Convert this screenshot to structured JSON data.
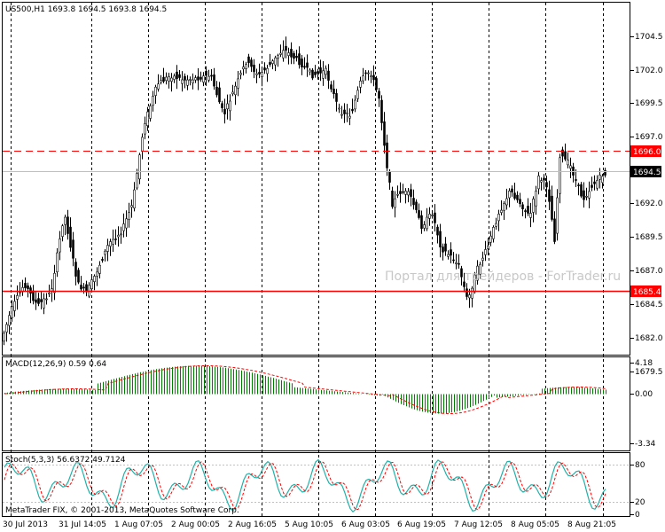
{
  "main": {
    "info": "US500,H1  1693.8 1694.5 1693.8 1694.5",
    "watermark": "Портал для трейдеров - ForTrader.ru",
    "price_ticks": [
      "1704.5",
      "1702.0",
      "1699.5",
      "1697.0",
      "1692.0",
      "1689.5",
      "1687.0",
      "1684.5",
      "1682.0",
      "1679.5"
    ],
    "current_price": "1694.5",
    "lines": [
      {
        "price": "1696.0",
        "color": "#ff0000",
        "style": "dashed"
      },
      {
        "price": "1685.4",
        "color": "#ff0000",
        "style": "solid"
      }
    ]
  },
  "macd": {
    "label": "MACD(12,26,9) 0.59 0.64",
    "ticks": [
      "4.18",
      "0.00",
      "-3.34"
    ]
  },
  "stoch": {
    "label": "Stoch(5,3,3) 56.6372 49.7124",
    "ticks": [
      "80",
      "20",
      "0"
    ]
  },
  "footer": {
    "copyright": "MetaTrader FIX, © 2001-2013, MetaQuotes Software Corp."
  },
  "time_labels": [
    "30 Jul 2013",
    "31 Jul 14:05",
    "1 Aug 07:05",
    "2 Aug 00:05",
    "2 Aug 16:05",
    "5 Aug 10:05",
    "6 Aug 03:05",
    "6 Aug 19:05",
    "7 Aug 12:05",
    "8 Aug 05:05",
    "8 Aug 21:05"
  ],
  "colors": {
    "bull": "#000000",
    "bear": "#000000",
    "macd_hist": "#008000",
    "macd_signal": "#ff0000",
    "stoch_main": "#20b2aa",
    "stoch_signal": "#ff0000",
    "level": "#ff0000",
    "current_price_line": "#c0c0c0"
  }
}
